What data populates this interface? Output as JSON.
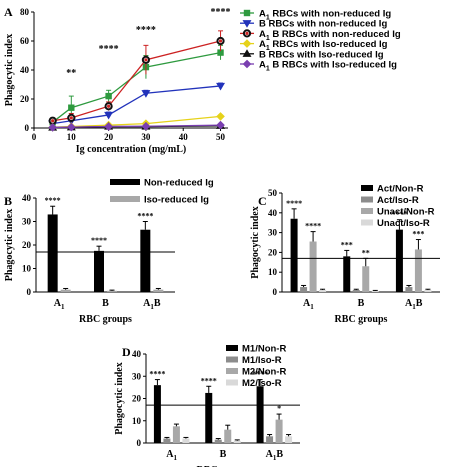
{
  "panels": [
    {
      "label": "A",
      "chart_data": {
        "type": "line",
        "xlabel": "Ig concentration (mg/mL)",
        "ylabel": "Phagocytic index",
        "x": [
          5,
          10,
          20,
          30,
          50
        ],
        "xticks": [
          0,
          10,
          20,
          30,
          40,
          50
        ],
        "yticks": [
          0,
          20,
          40,
          60,
          80
        ],
        "xlim": [
          0,
          52
        ],
        "ylim": [
          0,
          80
        ],
        "annotations": [
          {
            "x": 10,
            "text": "**"
          },
          {
            "x": 20,
            "text": "****"
          },
          {
            "x": 30,
            "text": "****"
          },
          {
            "x": 50,
            "text": "****"
          }
        ],
        "legend_position": "right",
        "series": [
          {
            "name": "A1 RBCs with non-reduced Ig",
            "name_main": "A",
            "name_sub": "1",
            "name_rest": " RBCs with non-reduced Ig",
            "values": [
              4,
              14,
              22,
              42,
              52
            ],
            "errors": [
              2,
              8,
              4,
              8,
              5
            ],
            "color": "#2e9a3f",
            "marker": "square",
            "open": false
          },
          {
            "name": "B RBCs with non-reduced Ig",
            "name_main": "B RBCs with non-reduced Ig",
            "name_sub": "",
            "name_rest": "",
            "values": [
              3,
              5,
              9,
              24,
              29
            ],
            "errors": [
              1,
              2,
              2,
              2,
              2
            ],
            "color": "#2233bb",
            "marker": "triangle-down",
            "open": false
          },
          {
            "name": "A1 B RBCs with non-reduced Ig",
            "name_main": "A",
            "name_sub": "1",
            "name_rest": " B RBCs with non-reduced Ig",
            "values": [
              5,
              7,
              15,
              47,
              60
            ],
            "errors": [
              2,
              3,
              3,
              10,
              7
            ],
            "color": "#cc2222",
            "marker": "circle",
            "open": true
          },
          {
            "name": "A1 RBCs with Iso-reduced Ig",
            "name_main": "A",
            "name_sub": "1",
            "name_rest": " RBCs with Iso-reduced Ig",
            "values": [
              0.5,
              1,
              2,
              3,
              8
            ],
            "errors": [
              0.3,
              0.5,
              0.5,
              1,
              1
            ],
            "color": "#e6d21a",
            "marker": "diamond",
            "open": false
          },
          {
            "name": "B RBCs with Iso-reduced Ig",
            "name_main": "B RBCs with Iso-reduced Ig",
            "name_sub": "",
            "name_rest": "",
            "values": [
              0.3,
              0.5,
              1,
              1,
              1.5
            ],
            "errors": [
              0.2,
              0.3,
              0.3,
              0.3,
              0.4
            ],
            "color": "#111111",
            "marker": "triangle-up",
            "open": false
          },
          {
            "name": "A1 B RBCs with Iso-reduced Ig",
            "name_main": "A",
            "name_sub": "1",
            "name_rest": " B RBCs with Iso-reduced Ig",
            "values": [
              0.4,
              0.6,
              1,
              1.2,
              2
            ],
            "errors": [
              0.2,
              0.3,
              0.3,
              0.3,
              0.4
            ],
            "color": "#7a3fb0",
            "marker": "diamond",
            "open": false
          }
        ]
      }
    },
    {
      "label": "B",
      "chart_data": {
        "type": "bar",
        "xlabel": "RBC groups",
        "ylabel": "Phagocytic index",
        "categories": [
          {
            "main": "A",
            "sub": "1"
          },
          {
            "main": "B",
            "sub": ""
          },
          {
            "main": "A",
            "sub": "1",
            "suffix": "B"
          }
        ],
        "yticks": [
          0,
          10,
          20,
          30,
          40
        ],
        "ylim": [
          0,
          40
        ],
        "reference_line": 17,
        "legend_position": "top-right",
        "series": [
          {
            "name": "Non-reduced Ig",
            "values": [
              33,
              17.5,
              26.5
            ],
            "errors": [
              3.5,
              2,
              3.5
            ],
            "color": "#000000",
            "stars": [
              "****",
              "****",
              "****"
            ]
          },
          {
            "name": "Iso-reduced Ig",
            "values": [
              1,
              0.5,
              1
            ],
            "errors": [
              0.5,
              0.3,
              0.5
            ],
            "color": "#a8a8a8",
            "stars": [
              "",
              "",
              ""
            ]
          }
        ]
      }
    },
    {
      "label": "C",
      "chart_data": {
        "type": "bar",
        "xlabel": "RBC groups",
        "ylabel": "Phagocytic index",
        "categories": [
          {
            "main": "A",
            "sub": "1"
          },
          {
            "main": "B",
            "sub": ""
          },
          {
            "main": "A",
            "sub": "1",
            "suffix": "B"
          }
        ],
        "yticks": [
          0,
          10,
          20,
          30,
          40,
          50
        ],
        "ylim": [
          0,
          50
        ],
        "reference_line": 17,
        "legend_position": "top-right",
        "series": [
          {
            "name": "Act/Non-R",
            "values": [
              37,
              18,
              31.5
            ],
            "errors": [
              5,
              3,
              5
            ],
            "color": "#000000",
            "stars": [
              "****",
              "***",
              "****"
            ]
          },
          {
            "name": "Act/Iso-R",
            "values": [
              2.5,
              1,
              2.5
            ],
            "errors": [
              0.8,
              0.4,
              0.8
            ],
            "color": "#8c8c8c",
            "stars": [
              "",
              "",
              ""
            ]
          },
          {
            "name": "Unact/Non-R",
            "values": [
              25.5,
              13,
              21.5
            ],
            "errors": [
              5,
              4,
              5
            ],
            "color": "#a8a8a8",
            "stars": [
              "****",
              "**",
              "***"
            ]
          },
          {
            "name": "Unact/Iso-R",
            "values": [
              1,
              0.5,
              1
            ],
            "errors": [
              0.4,
              0.3,
              0.4
            ],
            "color": "#d9d9d9",
            "stars": [
              "",
              "",
              ""
            ]
          }
        ]
      }
    },
    {
      "label": "D",
      "chart_data": {
        "type": "bar",
        "xlabel": "RBC groups",
        "ylabel": "Phagocytic index",
        "categories": [
          {
            "main": "A",
            "sub": "1"
          },
          {
            "main": "B",
            "sub": ""
          },
          {
            "main": "A",
            "sub": "1",
            "suffix": "B"
          }
        ],
        "yticks": [
          0,
          10,
          20,
          30,
          40
        ],
        "ylim": [
          0,
          40
        ],
        "reference_line": 17,
        "legend_position": "top-right",
        "series": [
          {
            "name": "M1/Non-R",
            "values": [
              26,
              22.5,
              25.5
            ],
            "errors": [
              2.5,
              3,
              3
            ],
            "color": "#000000",
            "stars": [
              "****",
              "****",
              "****"
            ]
          },
          {
            "name": "M1/Iso-R",
            "values": [
              2,
              1.5,
              3
            ],
            "errors": [
              0.5,
              0.5,
              0.8
            ],
            "color": "#8c8c8c",
            "stars": [
              "",
              "",
              ""
            ]
          },
          {
            "name": "M2/Non-R",
            "values": [
              7.5,
              6,
              10.5
            ],
            "errors": [
              1,
              2,
              2.5
            ],
            "color": "#a8a8a8",
            "stars": [
              "",
              "",
              "*"
            ]
          },
          {
            "name": "M2/Iso-R",
            "values": [
              2,
              1,
              3
            ],
            "errors": [
              0.5,
              0.4,
              0.8
            ],
            "color": "#d9d9d9",
            "stars": [
              "",
              "",
              ""
            ]
          }
        ]
      }
    }
  ]
}
